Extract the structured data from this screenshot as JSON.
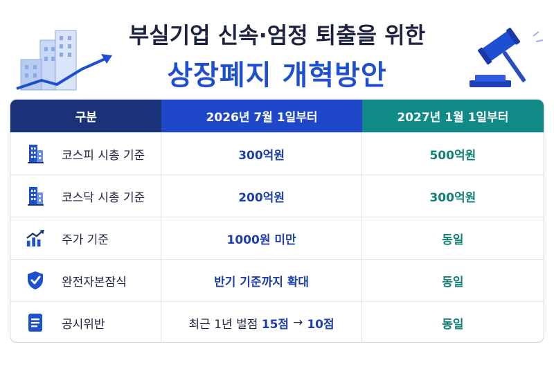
{
  "title": {
    "line1": "부실기업 신속·엄정 퇴출을 위한",
    "line2": "상장폐지 개혁방안"
  },
  "icons": {
    "left_illustration": "city-buildings-growth-arrow-icon",
    "right_illustration": "gavel-icon"
  },
  "colors": {
    "header_col1": "#1a3277",
    "header_col2": "#1e48c9",
    "header_col3": "#0f8a86",
    "accent_blue": "#1f4fd1",
    "accent_teal": "#118077"
  },
  "table": {
    "headers": [
      "구분",
      "2026년 7월 1일부터",
      "2027년 1월 1일부터"
    ],
    "rows": [
      {
        "icon": "building-icon",
        "label": "코스피 시총 기준",
        "col2": "300억원",
        "col3": "500억원"
      },
      {
        "icon": "building-icon",
        "label": "코스닥 시총 기준",
        "col2": "200억원",
        "col3": "300억원"
      },
      {
        "icon": "chart-growth-icon",
        "label": "주가 기준",
        "col2": "1000원 미만",
        "col3": "동일"
      },
      {
        "icon": "shield-check-icon",
        "label": "완전자본잠식",
        "col2": "반기 기준까지 확대",
        "col3": "동일"
      },
      {
        "icon": "document-icon",
        "label": "공시위반",
        "col2_prefix": "최근 1년 벌점",
        "col2_from": "15점",
        "col2_arrow": "→",
        "col2_to": "10점",
        "col3": "동일"
      }
    ]
  }
}
